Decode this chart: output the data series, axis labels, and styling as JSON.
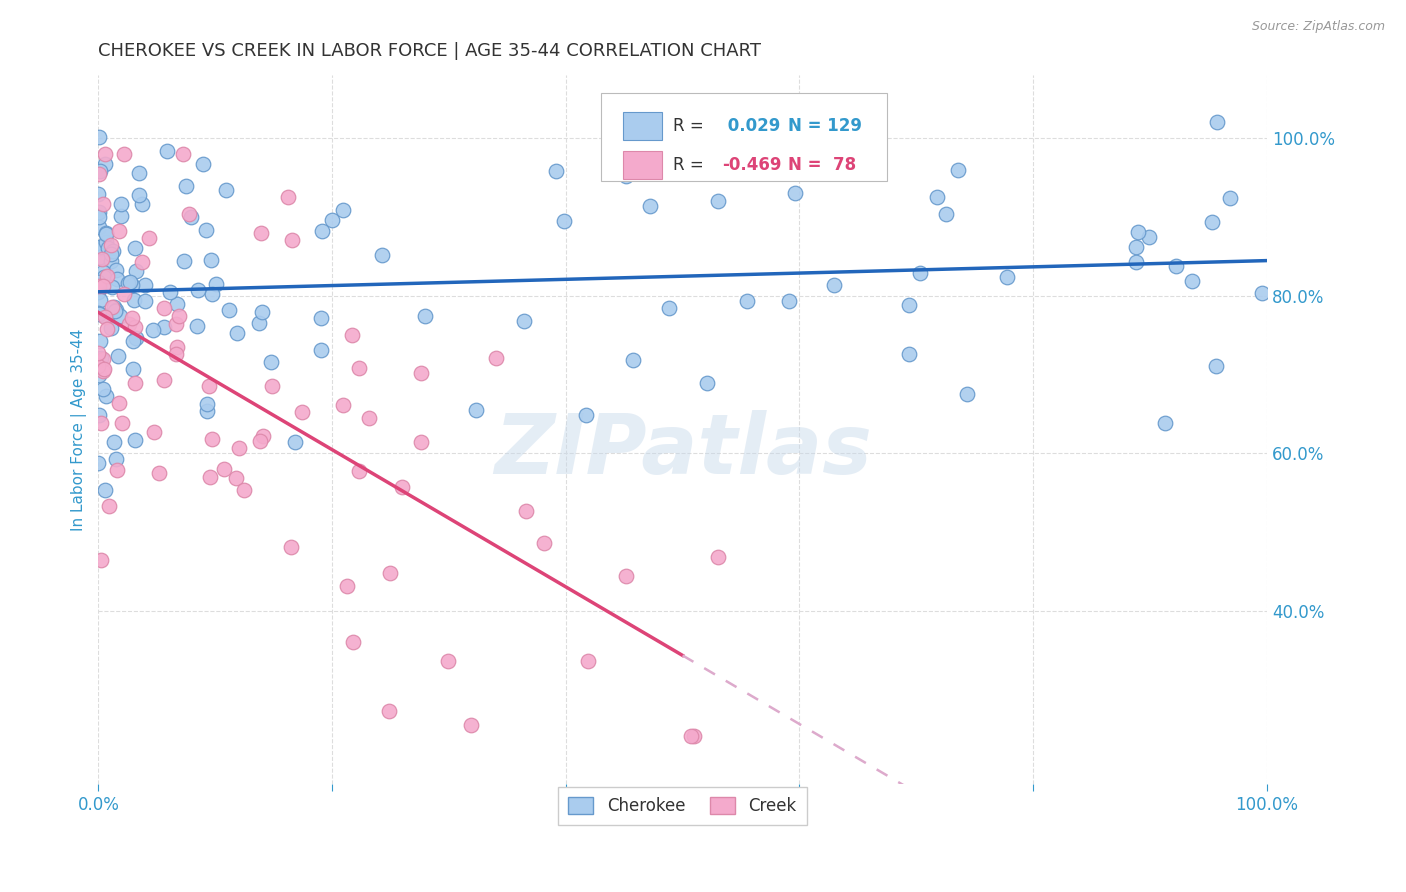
{
  "title": "CHEROKEE VS CREEK IN LABOR FORCE | AGE 35-44 CORRELATION CHART",
  "source": "Source: ZipAtlas.com",
  "ylabel": "In Labor Force | Age 35-44",
  "watermark": "ZIPatlas",
  "xlim": [
    0.0,
    1.0
  ],
  "ylim": [
    0.18,
    1.08
  ],
  "xtick_vals": [
    0.0,
    0.2,
    0.4,
    0.6,
    0.8,
    1.0
  ],
  "xticklabels": [
    "0.0%",
    "",
    "",
    "",
    "",
    "100.0%"
  ],
  "yticks_right": [
    0.4,
    0.6,
    0.8,
    1.0
  ],
  "yticklabels_right": [
    "40.0%",
    "60.0%",
    "80.0%",
    "100.0%"
  ],
  "cherokee_R": 0.029,
  "cherokee_N": 129,
  "creek_R": -0.469,
  "creek_N": 78,
  "legend_color_cherokee": "#aaccee",
  "legend_color_creek": "#f4aacc",
  "line_color_cherokee": "#2266bb",
  "line_color_creek": "#dd4477",
  "line_color_creek_dashed": "#ddaacc",
  "scatter_color_cherokee": "#aaccee",
  "scatter_color_creek": "#f4aacc",
  "scatter_edge_cherokee": "#6699cc",
  "scatter_edge_creek": "#dd88aa",
  "background_color": "#ffffff",
  "grid_color": "#dddddd",
  "title_color": "#333333",
  "axis_label_color": "#3399cc",
  "creek_line_solid_end": 0.5
}
